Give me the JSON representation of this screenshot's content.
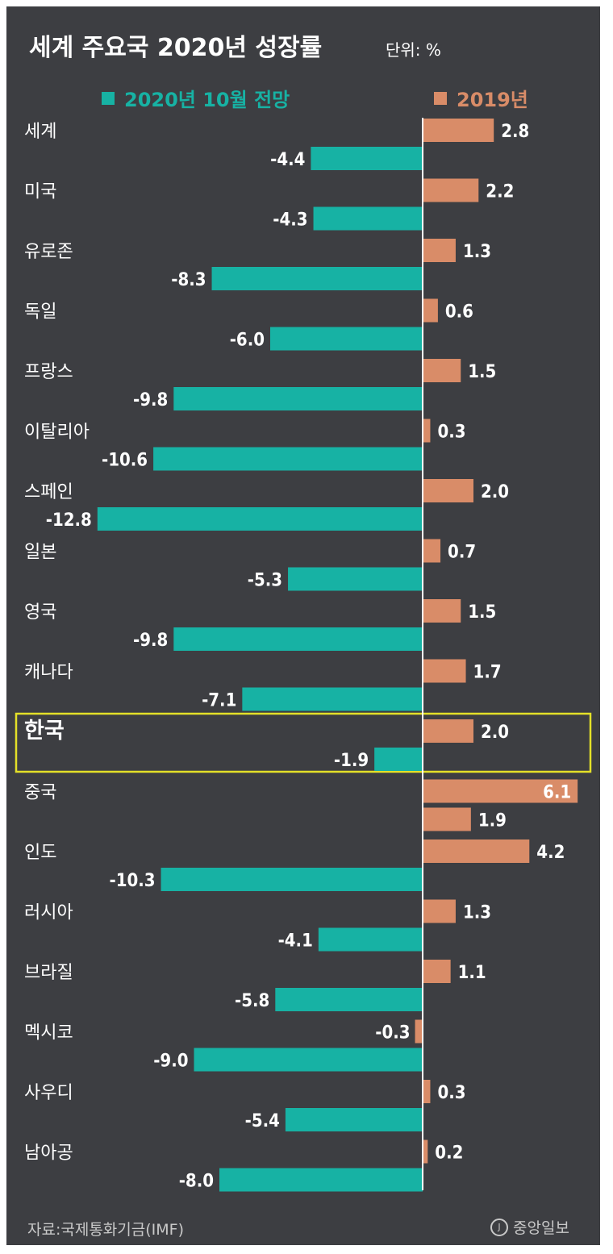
{
  "header": {
    "title": "세계 주요국 2020년 성장률",
    "unit": "단위: %"
  },
  "legend": {
    "series_a": "2020년 10월 전망",
    "series_b": "2019년"
  },
  "footer": {
    "source": "자료:국제통화기금(IMF)",
    "logo": "중앙일보"
  },
  "colors": {
    "background": "#3d3e42",
    "series_a": "#17b2a4",
    "series_b": "#d98c68",
    "highlight": "#e4e028"
  },
  "chart_data": {
    "type": "bar",
    "orientation": "horizontal",
    "title": "세계 주요국 2020년 성장률",
    "categories": [
      "세계",
      "미국",
      "유로존",
      "독일",
      "프랑스",
      "이탈리아",
      "스페인",
      "일본",
      "영국",
      "캐나다",
      "한국",
      "중국",
      "인도",
      "러시아",
      "브라질",
      "멕시코",
      "사우디",
      "남아공"
    ],
    "series": [
      {
        "name": "2019년",
        "values": [
          2.8,
          2.2,
          1.3,
          0.6,
          1.5,
          0.3,
          2.0,
          0.7,
          1.5,
          1.7,
          2.0,
          6.1,
          4.2,
          1.3,
          1.1,
          -0.3,
          0.3,
          0.2
        ]
      },
      {
        "name": "2020년 10월 전망",
        "values": [
          -4.4,
          -4.3,
          -8.3,
          -6.0,
          -9.8,
          -10.6,
          -12.8,
          -5.3,
          -9.8,
          -7.1,
          -1.9,
          1.9,
          -10.3,
          -4.1,
          -5.8,
          -9.0,
          -5.4,
          -8.0
        ]
      }
    ],
    "value_labels_a": [
      "-4.4",
      "-4.3",
      "-8.3",
      "-6.0",
      "-9.8",
      "-10.6",
      "-12.8",
      "-5.3",
      "-9.8",
      "-7.1",
      "-1.9",
      "1.9",
      "-10.3",
      "-4.1",
      "-5.8",
      "-9.0",
      "-5.4",
      "-8.0"
    ],
    "value_labels_b": [
      "2.8",
      "2.2",
      "1.3",
      "0.6",
      "1.5",
      "0.3",
      "2.0",
      "0.7",
      "1.5",
      "1.7",
      "2.0",
      "6.1",
      "4.2",
      "1.3",
      "1.1",
      "-0.3",
      "0.3",
      "0.2"
    ],
    "highlighted_category": "한국",
    "legend_position": "top"
  }
}
